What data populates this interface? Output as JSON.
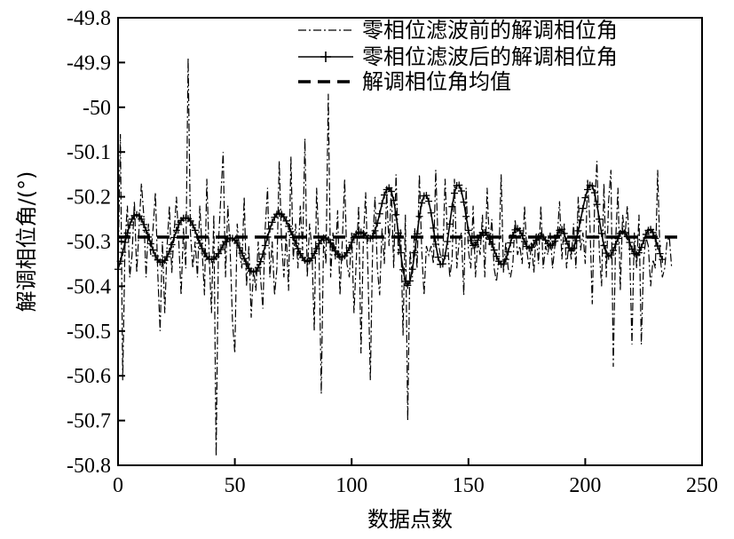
{
  "chart_data": {
    "type": "line",
    "xlabel": "数据点数",
    "ylabel": "解调相位角/(°)",
    "xlim": [
      0,
      250
    ],
    "ylim": [
      -50.8,
      -49.8
    ],
    "x_ticks": [
      "0",
      "50",
      "100",
      "150",
      "200",
      "250"
    ],
    "y_ticks": [
      "-49.8",
      "-49.9",
      "-50",
      "-50.1",
      "-50.2",
      "-50.3",
      "-50.4",
      "-50.5",
      "-50.6",
      "-50.7",
      "-50.8"
    ],
    "grid": false,
    "legend_position": "top-right",
    "series": [
      {
        "name": "零相位滤波前的解调相位角",
        "style": "dash-dot",
        "color": "#000000",
        "x_start": 0,
        "x_step": 1,
        "values": [
          -50.37,
          -50.06,
          -50.61,
          -50.3,
          -50.22,
          -50.38,
          -50.33,
          -50.21,
          -50.37,
          -50.27,
          -50.17,
          -50.24,
          -50.38,
          -50.26,
          -50.33,
          -50.27,
          -50.19,
          -50.37,
          -50.5,
          -50.3,
          -50.46,
          -50.31,
          -50.22,
          -50.37,
          -50.28,
          -50.2,
          -50.3,
          -50.42,
          -50.27,
          -50.36,
          -49.89,
          -50.28,
          -50.36,
          -50.3,
          -50.38,
          -50.22,
          -50.32,
          -50.42,
          -50.16,
          -50.33,
          -50.46,
          -50.24,
          -50.78,
          -50.3,
          -50.2,
          -50.1,
          -50.38,
          -50.22,
          -50.32,
          -50.48,
          -50.55,
          -50.26,
          -50.32,
          -50.36,
          -50.2,
          -50.4,
          -50.31,
          -50.47,
          -50.36,
          -50.41,
          -50.3,
          -50.38,
          -50.45,
          -50.27,
          -50.18,
          -50.38,
          -50.3,
          -50.42,
          -50.36,
          -50.12,
          -50.3,
          -50.38,
          -50.28,
          -50.41,
          -50.11,
          -50.34,
          -50.26,
          -50.36,
          -50.22,
          -50.32,
          -50.07,
          -50.38,
          -50.26,
          -50.32,
          -50.5,
          -50.18,
          -50.31,
          -50.64,
          -50.29,
          -50.35,
          -49.97,
          -50.38,
          -50.28,
          -50.34,
          -50.23,
          -50.42,
          -50.3,
          -50.16,
          -50.35,
          -50.38,
          -50.28,
          -50.46,
          -50.34,
          -50.22,
          -50.55,
          -50.3,
          -50.19,
          -50.37,
          -50.61,
          -50.31,
          -50.2,
          -50.36,
          -50.42,
          -50.27,
          -50.35,
          -50.19,
          -50.31,
          -50.18,
          -50.36,
          -50.15,
          -50.33,
          -50.27,
          -50.51,
          -50.24,
          -50.7,
          -50.32,
          -50.38,
          -50.27,
          -50.36,
          -50.15,
          -50.32,
          -50.42,
          -50.31,
          -50.33,
          -50.31,
          -50.35,
          -50.14,
          -50.3,
          -50.33,
          -50.34,
          -50.16,
          -50.29,
          -50.38,
          -50.34,
          -50.16,
          -50.36,
          -50.3,
          -50.28,
          -50.42,
          -50.18,
          -50.32,
          -50.36,
          -50.22,
          -50.38,
          -50.3,
          -50.33,
          -50.24,
          -50.38,
          -50.18,
          -50.31,
          -50.25,
          -50.36,
          -50.39,
          -50.34,
          -50.15,
          -50.37,
          -50.3,
          -50.36,
          -50.38,
          -50.35,
          -50.25,
          -50.33,
          -50.31,
          -50.35,
          -50.22,
          -50.32,
          -50.36,
          -50.3,
          -50.37,
          -50.28,
          -50.35,
          -50.22,
          -50.36,
          -50.31,
          -50.33,
          -50.28,
          -50.36,
          -50.31,
          -50.29,
          -50.21,
          -50.34,
          -50.26,
          -50.36,
          -50.3,
          -50.34,
          -50.26,
          -50.36,
          -50.2,
          -50.32,
          -50.28,
          -50.35,
          -50.16,
          -50.26,
          -50.44,
          -50.22,
          -50.12,
          -50.32,
          -50.4,
          -50.17,
          -50.38,
          -50.21,
          -50.14,
          -50.58,
          -50.3,
          -50.18,
          -50.41,
          -50.24,
          -50.29,
          -50.22,
          -50.32,
          -50.53,
          -50.28,
          -50.36,
          -50.24,
          -50.53,
          -50.34,
          -50.29,
          -50.31,
          -50.4,
          -50.34,
          -50.36,
          -50.14,
          -50.33,
          -50.38,
          -50.36,
          -50.3,
          -50.29,
          -50.36
        ]
      },
      {
        "name": "零相位滤波后的解调相位角",
        "style": "solid-plus",
        "color": "#000000",
        "x_start": 0,
        "x_step": 1,
        "values": [
          -50.362,
          -50.344,
          -50.324,
          -50.302,
          -50.281,
          -50.263,
          -50.25,
          -50.242,
          -50.24,
          -50.243,
          -50.25,
          -50.262,
          -50.275,
          -50.29,
          -50.305,
          -50.319,
          -50.332,
          -50.341,
          -50.346,
          -50.346,
          -50.342,
          -50.334,
          -50.322,
          -50.307,
          -50.291,
          -50.275,
          -50.262,
          -50.253,
          -50.248,
          -50.247,
          -50.249,
          -50.254,
          -50.263,
          -50.275,
          -50.29,
          -50.304,
          -50.316,
          -50.326,
          -50.334,
          -50.339,
          -50.34,
          -50.339,
          -50.334,
          -50.327,
          -50.318,
          -50.308,
          -50.3,
          -50.294,
          -50.292,
          -50.293,
          -50.297,
          -50.304,
          -50.314,
          -50.326,
          -50.338,
          -50.35,
          -50.36,
          -50.366,
          -50.368,
          -50.366,
          -50.358,
          -50.345,
          -50.328,
          -50.309,
          -50.29,
          -50.272,
          -50.257,
          -50.246,
          -50.239,
          -50.237,
          -50.239,
          -50.245,
          -50.254,
          -50.266,
          -50.278,
          -50.291,
          -50.304,
          -50.316,
          -50.327,
          -50.336,
          -50.342,
          -50.345,
          -50.343,
          -50.337,
          -50.327,
          -50.316,
          -50.305,
          -50.297,
          -50.292,
          -50.292,
          -50.296,
          -50.303,
          -50.312,
          -50.321,
          -50.329,
          -50.334,
          -50.335,
          -50.332,
          -50.325,
          -50.314,
          -50.302,
          -50.291,
          -50.283,
          -50.279,
          -50.279,
          -50.282,
          -50.287,
          -50.292,
          -50.293,
          -50.288,
          -50.276,
          -50.259,
          -50.238,
          -50.215,
          -50.196,
          -50.184,
          -50.18,
          -50.188,
          -50.208,
          -50.24,
          -50.281,
          -50.325,
          -50.363,
          -50.389,
          -50.398,
          -50.388,
          -50.362,
          -50.325,
          -50.283,
          -50.244,
          -50.214,
          -50.198,
          -50.197,
          -50.21,
          -50.236,
          -50.27,
          -50.306,
          -50.335,
          -50.351,
          -50.35,
          -50.332,
          -50.3,
          -50.261,
          -50.222,
          -50.192,
          -50.175,
          -50.174,
          -50.187,
          -50.212,
          -50.244,
          -50.275,
          -50.298,
          -50.309,
          -50.307,
          -50.297,
          -50.286,
          -50.28,
          -50.28,
          -50.286,
          -50.295,
          -50.306,
          -50.319,
          -50.333,
          -50.344,
          -50.351,
          -50.35,
          -50.34,
          -50.323,
          -50.303,
          -50.286,
          -50.274,
          -50.271,
          -50.276,
          -50.287,
          -50.3,
          -50.311,
          -50.315,
          -50.313,
          -50.306,
          -50.297,
          -50.29,
          -50.287,
          -50.29,
          -50.297,
          -50.305,
          -50.309,
          -50.308,
          -50.299,
          -50.286,
          -50.275,
          -50.273,
          -50.282,
          -50.299,
          -50.314,
          -50.321,
          -50.315,
          -50.298,
          -50.276,
          -50.252,
          -50.226,
          -50.202,
          -50.184,
          -50.174,
          -50.176,
          -50.191,
          -50.217,
          -50.25,
          -50.282,
          -50.309,
          -50.326,
          -50.333,
          -50.33,
          -50.32,
          -50.306,
          -50.293,
          -50.282,
          -50.277,
          -50.28,
          -50.289,
          -50.302,
          -50.317,
          -50.327,
          -50.33,
          -50.325,
          -50.313,
          -50.298,
          -50.284,
          -50.275,
          -50.273,
          -50.28,
          -50.293,
          -50.31,
          -50.327,
          -50.34
        ]
      },
      {
        "name": "解调相位角均值",
        "style": "dashed",
        "color": "#000000",
        "x": [
          0,
          240
        ],
        "values": [
          -50.29,
          -50.29
        ]
      }
    ]
  }
}
